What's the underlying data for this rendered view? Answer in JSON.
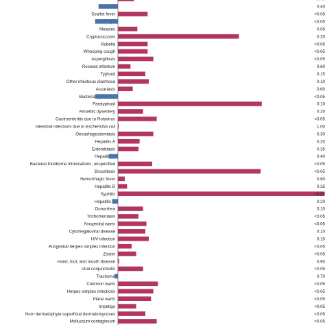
{
  "chart_data": {
    "type": "bar",
    "orientation": "horizontal",
    "title": "",
    "xlabel": "",
    "ylabel": "",
    "xlim": [
      -1.0,
      9.1
    ],
    "colors": {
      "positive": "#b2365e",
      "negative": "#4a73a8"
    },
    "rows": [
      {
        "category": "",
        "value": 0.7,
        "p": "0.40"
      },
      {
        "category": "Varicella",
        "value": -0.85,
        "p": "0.40"
      },
      {
        "category": "Scarlet fever",
        "value": 1.3,
        "p": "<0.05"
      },
      {
        "category": "Mumps",
        "value": -1.0,
        "p": "<0.05"
      },
      {
        "category": "Measles",
        "value": 0.85,
        "p": "0.05"
      },
      {
        "category": "Cryptococcosis",
        "value": 5.3,
        "p": "0.20"
      },
      {
        "category": "Rubella",
        "value": 1.3,
        "p": "<0.05"
      },
      {
        "category": "Whooping cough",
        "value": 1.3,
        "p": "<0.05"
      },
      {
        "category": "Aspergillosis",
        "value": 1.55,
        "p": "<0.05"
      },
      {
        "category": "Roseola infantum",
        "value": 0.55,
        "p": "0.60"
      },
      {
        "category": "Typhoid",
        "value": 1.2,
        "p": "0.15"
      },
      {
        "category": "Other infectious diarrhoea",
        "value": 1.35,
        "p": "0.10"
      },
      {
        "category": "Ascariasis",
        "value": 0.65,
        "p": "0.60"
      },
      {
        "category": "Bacterial dysentery",
        "value": -1.0,
        "p": "<0.05"
      },
      {
        "category": "Paratyphoid",
        "value": 6.3,
        "p": "0.10"
      },
      {
        "category": "Amoebic dysentery",
        "value": 1.1,
        "p": "0.20"
      },
      {
        "category": "Gastroenteritis due to Rotavirus",
        "value": 1.7,
        "p": "<0.05"
      },
      {
        "category": "Intestinal infections due to Escherichia coli",
        "category_prefix": "Intestinal infections due to ",
        "category_italic": "Escherichia coli",
        "value": 0.03,
        "p": "1.00"
      },
      {
        "category": "Oesophagostomiasis",
        "value": 1.55,
        "p": "0.30"
      },
      {
        "category": "Hepatitis A",
        "value": 0.95,
        "p": "0.20"
      },
      {
        "category": "Enterobiasis",
        "value": 0.9,
        "p": "0.35"
      },
      {
        "category": "Hepatitis E",
        "value": -0.4,
        "p": "0.40"
      },
      {
        "category": "Bacterial foodborne intoxications, unspecified",
        "value": 1.5,
        "p": "<0.05"
      },
      {
        "category": "Brucellosis",
        "value": 6.25,
        "p": "<0.05"
      },
      {
        "category": "Hemorrhagic fever",
        "value": 0.3,
        "p": "0.80"
      },
      {
        "category": "Hepatitis B",
        "value": 0.4,
        "p": "0.35"
      },
      {
        "category": "Syphilis",
        "value": 9.05,
        "p": "<0.05"
      },
      {
        "category": "Hepatitis C",
        "value": -0.25,
        "p": "0.20"
      },
      {
        "category": "Gonorrhea",
        "value": 1.1,
        "p": "0.10"
      },
      {
        "category": "Trichomoniasis",
        "value": 0.9,
        "p": "<0.05"
      },
      {
        "category": "Anogenital warts",
        "value": 1.25,
        "p": "<0.05"
      },
      {
        "category": "Cytomegaloviral disease",
        "value": 1.2,
        "p": "0.10"
      },
      {
        "category": "HIV infection",
        "value": 1.35,
        "p": "0.10"
      },
      {
        "category": "Anogenital herpes simplex infection",
        "value": 0.6,
        "p": "<0.05"
      },
      {
        "category": "Zoster",
        "value": 0.8,
        "p": "<0.05"
      },
      {
        "category": "Hand, foot, and mouth disease",
        "value": 0.05,
        "p": "0.90"
      },
      {
        "category": "Viral conjunctivitis",
        "value": 1.1,
        "p": "<0.05"
      },
      {
        "category": "Trachoma",
        "value": -0.15,
        "p": "0.70"
      },
      {
        "category": "Common warts",
        "value": 1.75,
        "p": "<0.05"
      },
      {
        "category": "Herpes simplex infections",
        "value": 1.55,
        "p": "<0.05"
      },
      {
        "category": "Plane warts",
        "value": 1.45,
        "p": "<0.05"
      },
      {
        "category": "Impetigo",
        "value": 0.8,
        "p": "<0.05"
      },
      {
        "category": "Non−dermatophyte superficial dermatomycoses",
        "value": 1.2,
        "p": "<0.05"
      },
      {
        "category": "Molluscum contagiosum",
        "value": 1.7,
        "p": "<0.05"
      }
    ]
  }
}
